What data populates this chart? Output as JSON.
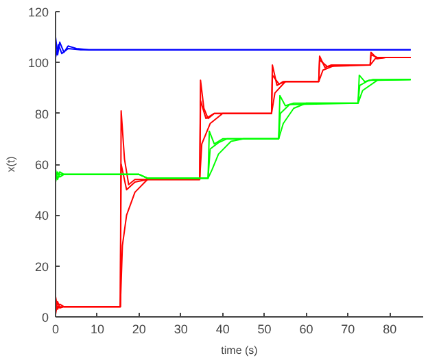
{
  "chart_data": {
    "type": "line",
    "xlabel": "time (s)",
    "ylabel": "x(t)",
    "xlim": [
      0,
      88
    ],
    "ylim": [
      0,
      120
    ],
    "xticks": [
      0,
      10,
      20,
      30,
      40,
      50,
      60,
      70,
      80
    ],
    "yticks": [
      0,
      20,
      40,
      60,
      80,
      100,
      120
    ],
    "grid": false,
    "marker": "none",
    "line_style": "solid",
    "series": [
      {
        "color": "#0000ff",
        "x": [
          0,
          0.5,
          1,
          2,
          3,
          5,
          8,
          85
        ],
        "values": [
          110,
          103,
          108,
          104,
          106.5,
          105.5,
          105,
          105
        ]
      },
      {
        "color": "#0000ff",
        "x": [
          0,
          0.7,
          1.5,
          3,
          6,
          85
        ],
        "values": [
          102,
          107,
          103.5,
          105.5,
          105,
          105
        ]
      },
      {
        "color": "#ff0000",
        "x": [
          0,
          0.5,
          1,
          2,
          15.5,
          15.7,
          16.5,
          17.5,
          19,
          34.5,
          34.7,
          35.5,
          36.5,
          38,
          51.7,
          51.9,
          53,
          54.5,
          63,
          63.2,
          64.5,
          66,
          75.3,
          75.5,
          77,
          79,
          85
        ],
        "values": [
          8,
          3,
          5,
          4,
          4,
          81,
          62,
          52,
          54,
          54,
          93,
          82,
          78,
          80,
          80,
          99,
          91,
          92.5,
          92.5,
          102.5,
          98,
          99,
          99,
          104,
          101.5,
          102,
          102
        ]
      },
      {
        "color": "#ff0000",
        "x": [
          0,
          0.5,
          1,
          2,
          15.5,
          15.7,
          17,
          19,
          22,
          34.5,
          34.7,
          36,
          38,
          51.7,
          51.9,
          53.5,
          55,
          63,
          63.2,
          65,
          75.3,
          75.5,
          77,
          85
        ],
        "values": [
          1,
          6,
          3.5,
          4,
          4,
          60,
          50,
          53,
          54,
          54,
          85,
          78,
          80,
          80,
          95,
          91.5,
          92.5,
          92.5,
          101,
          98.5,
          99,
          103,
          102,
          102
        ]
      },
      {
        "color": "#ff0000",
        "x": [
          0,
          15.5,
          16,
          17,
          19,
          22,
          34.5,
          35,
          37,
          40,
          51.7,
          52.5,
          55,
          63,
          64,
          67,
          75.3,
          76.5,
          79,
          85
        ],
        "values": [
          4,
          4,
          28,
          40,
          49,
          54,
          54,
          68,
          76,
          80,
          80,
          88,
          92.5,
          92.5,
          97,
          99,
          99,
          101.5,
          102,
          102
        ]
      },
      {
        "color": "#00ff00",
        "x": [
          0,
          0.5,
          1,
          2,
          20,
          22,
          36.5,
          36.8,
          38,
          40,
          53.4,
          53.7,
          55,
          57,
          72.4,
          72.7,
          74,
          76,
          85
        ],
        "values": [
          58,
          54,
          57,
          56,
          56,
          54.5,
          54.5,
          73,
          68,
          70,
          70,
          87,
          83,
          84,
          84,
          95,
          92.5,
          93.3,
          93.3
        ]
      },
      {
        "color": "#00ff00",
        "x": [
          0,
          0.5,
          1,
          2,
          20,
          22,
          36.5,
          37,
          39,
          41,
          53.4,
          53.8,
          56,
          72.4,
          72.8,
          75,
          85
        ],
        "values": [
          53,
          57,
          55,
          56,
          56,
          54.5,
          54.5,
          66,
          68.5,
          70,
          70,
          80,
          83.5,
          84,
          91,
          93,
          93.3
        ]
      },
      {
        "color": "#00ff00",
        "x": [
          0,
          20,
          22,
          36.5,
          37.5,
          39,
          42,
          45,
          53.4,
          54.5,
          57,
          60,
          72.4,
          73.5,
          77,
          85
        ],
        "values": [
          56,
          56,
          54.5,
          54.5,
          58,
          64,
          69,
          70,
          70,
          76,
          82,
          84,
          84,
          89,
          93,
          93.3
        ]
      }
    ]
  }
}
